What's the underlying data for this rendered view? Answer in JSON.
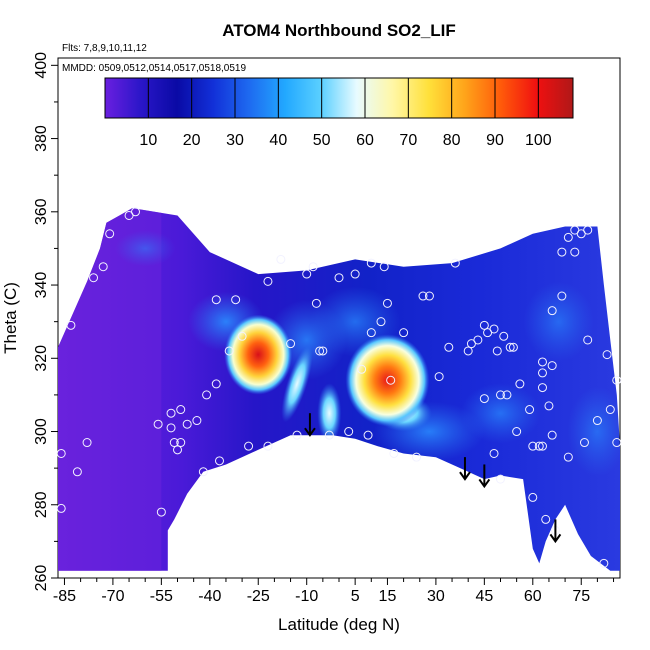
{
  "chart_data": {
    "type": "heatmap",
    "title": "ATOM4 Northbound SO2_LIF",
    "flights_note": "Flts: 7,8,9,10,11,12",
    "dates_note": "MMDD: 0509,0512,0514,0517,0518,0519",
    "xlabel": "Latitude (deg N)",
    "ylabel": "Theta (C)",
    "xlim": [
      -87,
      87
    ],
    "ylim": [
      260,
      402
    ],
    "x_ticks": [
      -85,
      -70,
      -55,
      -40,
      -25,
      -10,
      5,
      15,
      30,
      45,
      60,
      75
    ],
    "y_ticks": [
      260,
      280,
      300,
      320,
      340,
      360,
      380,
      400
    ],
    "colorbar": {
      "min": 0,
      "max": 108,
      "ticks": [
        10,
        20,
        30,
        40,
        50,
        60,
        70,
        80,
        90,
        100
      ],
      "colors": [
        "#6a1fe0",
        "#2a16c8",
        "#0a0aa5",
        "#1230d8",
        "#1e6af0",
        "#22a8ff",
        "#5bd0ff",
        "#e8fbff",
        "#fff7a6",
        "#ffe03a",
        "#ffa41a",
        "#ff5a0a",
        "#f01010",
        "#b01818"
      ]
    },
    "hotspots": [
      {
        "lat": -25,
        "theta": 321,
        "value": 95
      },
      {
        "lat": 15,
        "theta": 314,
        "value": 90
      }
    ],
    "observations": [
      {
        "lat": -86,
        "theta": 294
      },
      {
        "lat": -86,
        "theta": 279
      },
      {
        "lat": -83,
        "theta": 329
      },
      {
        "lat": -81,
        "theta": 289
      },
      {
        "lat": -78,
        "theta": 297
      },
      {
        "lat": -76,
        "theta": 342
      },
      {
        "lat": -73,
        "theta": 345
      },
      {
        "lat": -71,
        "theta": 354
      },
      {
        "lat": -65,
        "theta": 359
      },
      {
        "lat": -63,
        "theta": 360
      },
      {
        "lat": -56,
        "theta": 302
      },
      {
        "lat": -55,
        "theta": 278
      },
      {
        "lat": -52,
        "theta": 305
      },
      {
        "lat": -52,
        "theta": 301
      },
      {
        "lat": -51,
        "theta": 297
      },
      {
        "lat": -50,
        "theta": 295
      },
      {
        "lat": -49,
        "theta": 297
      },
      {
        "lat": -49,
        "theta": 306
      },
      {
        "lat": -47,
        "theta": 302
      },
      {
        "lat": -44,
        "theta": 303
      },
      {
        "lat": -42,
        "theta": 289
      },
      {
        "lat": -41,
        "theta": 310
      },
      {
        "lat": -38,
        "theta": 313
      },
      {
        "lat": -37,
        "theta": 292
      },
      {
        "lat": -38,
        "theta": 336
      },
      {
        "lat": -34,
        "theta": 322
      },
      {
        "lat": -32,
        "theta": 336
      },
      {
        "lat": -30,
        "theta": 326
      },
      {
        "lat": -28,
        "theta": 296
      },
      {
        "lat": -22,
        "theta": 341
      },
      {
        "lat": -22,
        "theta": 296
      },
      {
        "lat": -18,
        "theta": 347
      },
      {
        "lat": -15,
        "theta": 324
      },
      {
        "lat": -13,
        "theta": 299
      },
      {
        "lat": -10,
        "theta": 343
      },
      {
        "lat": -8,
        "theta": 345
      },
      {
        "lat": -7,
        "theta": 335
      },
      {
        "lat": -6,
        "theta": 322
      },
      {
        "lat": -5,
        "theta": 322
      },
      {
        "lat": -3,
        "theta": 299
      },
      {
        "lat": 0,
        "theta": 342
      },
      {
        "lat": 3,
        "theta": 300
      },
      {
        "lat": 5,
        "theta": 343
      },
      {
        "lat": 7,
        "theta": 317
      },
      {
        "lat": 9,
        "theta": 299
      },
      {
        "lat": 10,
        "theta": 346
      },
      {
        "lat": 10,
        "theta": 327
      },
      {
        "lat": 13,
        "theta": 330
      },
      {
        "lat": 14,
        "theta": 345
      },
      {
        "lat": 15,
        "theta": 335
      },
      {
        "lat": 16,
        "theta": 314
      },
      {
        "lat": 17,
        "theta": 294
      },
      {
        "lat": 20,
        "theta": 327
      },
      {
        "lat": 24,
        "theta": 293
      },
      {
        "lat": 26,
        "theta": 337
      },
      {
        "lat": 28,
        "theta": 337
      },
      {
        "lat": 31,
        "theta": 315
      },
      {
        "lat": 34,
        "theta": 323
      },
      {
        "lat": 36,
        "theta": 346
      },
      {
        "lat": 40,
        "theta": 322
      },
      {
        "lat": 41,
        "theta": 324
      },
      {
        "lat": 43,
        "theta": 325
      },
      {
        "lat": 45,
        "theta": 329
      },
      {
        "lat": 45,
        "theta": 309
      },
      {
        "lat": 46,
        "theta": 327
      },
      {
        "lat": 48,
        "theta": 328
      },
      {
        "lat": 48,
        "theta": 294
      },
      {
        "lat": 49,
        "theta": 322
      },
      {
        "lat": 50,
        "theta": 310
      },
      {
        "lat": 50,
        "theta": 287
      },
      {
        "lat": 51,
        "theta": 326
      },
      {
        "lat": 52,
        "theta": 310
      },
      {
        "lat": 53,
        "theta": 323
      },
      {
        "lat": 54,
        "theta": 323
      },
      {
        "lat": 55,
        "theta": 300
      },
      {
        "lat": 56,
        "theta": 313
      },
      {
        "lat": 59,
        "theta": 306
      },
      {
        "lat": 60,
        "theta": 296
      },
      {
        "lat": 60,
        "theta": 282
      },
      {
        "lat": 62,
        "theta": 296
      },
      {
        "lat": 63,
        "theta": 296
      },
      {
        "lat": 63,
        "theta": 316
      },
      {
        "lat": 63,
        "theta": 312
      },
      {
        "lat": 63,
        "theta": 319
      },
      {
        "lat": 64,
        "theta": 276
      },
      {
        "lat": 65,
        "theta": 307
      },
      {
        "lat": 66,
        "theta": 299
      },
      {
        "lat": 66,
        "theta": 318
      },
      {
        "lat": 67,
        "theta": 273
      },
      {
        "lat": 66,
        "theta": 333
      },
      {
        "lat": 69,
        "theta": 349
      },
      {
        "lat": 69,
        "theta": 337
      },
      {
        "lat": 71,
        "theta": 293
      },
      {
        "lat": 71,
        "theta": 353
      },
      {
        "lat": 73,
        "theta": 349
      },
      {
        "lat": 73,
        "theta": 355
      },
      {
        "lat": 75,
        "theta": 354
      },
      {
        "lat": 76,
        "theta": 297
      },
      {
        "lat": 77,
        "theta": 325
      },
      {
        "lat": 77,
        "theta": 355
      },
      {
        "lat": 80,
        "theta": 303
      },
      {
        "lat": 82,
        "theta": 264
      },
      {
        "lat": 83,
        "theta": 321
      },
      {
        "lat": 84,
        "theta": 306
      },
      {
        "lat": 86,
        "theta": 314
      },
      {
        "lat": 86,
        "theta": 297
      }
    ],
    "arrows": [
      {
        "lat": -9,
        "theta": 299
      },
      {
        "lat": 39,
        "theta": 287
      },
      {
        "lat": 45,
        "theta": 285
      },
      {
        "lat": 67,
        "theta": 270
      }
    ],
    "legend_position": "top"
  }
}
